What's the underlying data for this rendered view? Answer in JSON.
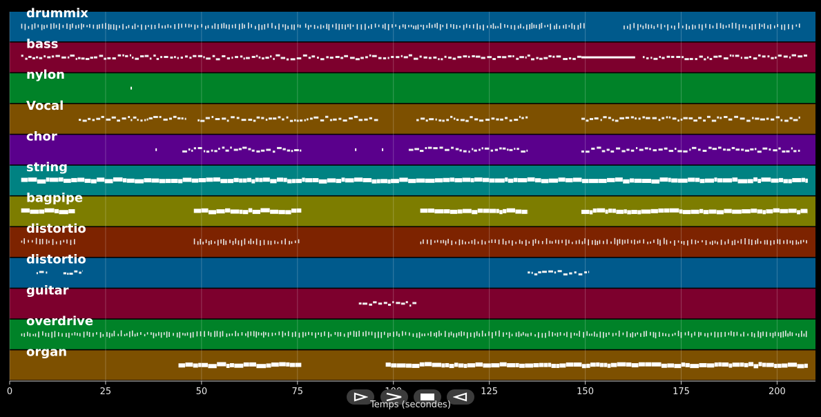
{
  "chart_data": {
    "type": "piano-roll",
    "xlabel": "Temps (secondes)",
    "xlim": [
      0,
      210
    ],
    "xticks": [
      0,
      25,
      50,
      75,
      100,
      125,
      150,
      175,
      200
    ],
    "grid": true,
    "tracks": [
      {
        "name": "drummix",
        "color": "#005a8c",
        "style": "dense-ticks",
        "segments": [
          [
            3,
            76
          ],
          [
            77,
            150
          ],
          [
            160,
            206
          ]
        ]
      },
      {
        "name": "bass",
        "color": "#7d002d",
        "style": "dashes",
        "segments": [
          [
            3,
            149
          ],
          [
            149,
            163
          ],
          [
            165,
            208
          ]
        ],
        "sustained": [
          [
            149,
            163
          ]
        ]
      },
      {
        "name": "nylon",
        "color": "#008228",
        "style": "dots",
        "segments": [
          [
            31.5,
            31.8
          ]
        ]
      },
      {
        "name": "Vocal",
        "color": "#7d5000",
        "style": "dashes",
        "segments": [
          [
            18,
            46
          ],
          [
            49,
            96
          ],
          [
            106,
            135
          ],
          [
            149,
            206
          ]
        ]
      },
      {
        "name": "chor",
        "color": "#5a008c",
        "style": "dashes",
        "segments": [
          [
            38,
            38.5
          ],
          [
            45,
            76
          ],
          [
            90,
            90.5
          ],
          [
            97,
            97.5
          ],
          [
            104,
            135
          ],
          [
            149,
            206
          ]
        ]
      },
      {
        "name": "string",
        "color": "#008282",
        "style": "blocks",
        "segments": [
          [
            3,
            208
          ]
        ]
      },
      {
        "name": "bagpipe",
        "color": "#7d7d00",
        "style": "blocks",
        "segments": [
          [
            3,
            17
          ],
          [
            48,
            76
          ],
          [
            107,
            135
          ],
          [
            149,
            208
          ]
        ]
      },
      {
        "name": "distortio",
        "color": "#7d2300",
        "style": "dense-ticks",
        "segments": [
          [
            3,
            17
          ],
          [
            48,
            76
          ],
          [
            107,
            208
          ]
        ]
      },
      {
        "name": "distortio",
        "color": "#005a8c",
        "style": "dashes",
        "segments": [
          [
            7,
            10
          ],
          [
            14,
            19
          ],
          [
            135,
            151
          ]
        ]
      },
      {
        "name": "guitar",
        "color": "#7d002d",
        "style": "dashes",
        "segments": [
          [
            91,
            106
          ]
        ]
      },
      {
        "name": "overdrive",
        "color": "#008228",
        "style": "dense-ticks",
        "segments": [
          [
            3,
            208
          ]
        ]
      },
      {
        "name": "organ",
        "color": "#7d5000",
        "style": "blocks",
        "segments": [
          [
            44,
            76
          ],
          [
            98,
            208
          ]
        ]
      }
    ]
  },
  "controls": [
    {
      "name": "play-button",
      "icon": "play-outline-icon"
    },
    {
      "name": "forward-button",
      "icon": "chevron-right-icon"
    },
    {
      "name": "stop-button",
      "icon": "stop-icon"
    },
    {
      "name": "rewind-button",
      "icon": "play-back-outline-icon"
    }
  ]
}
